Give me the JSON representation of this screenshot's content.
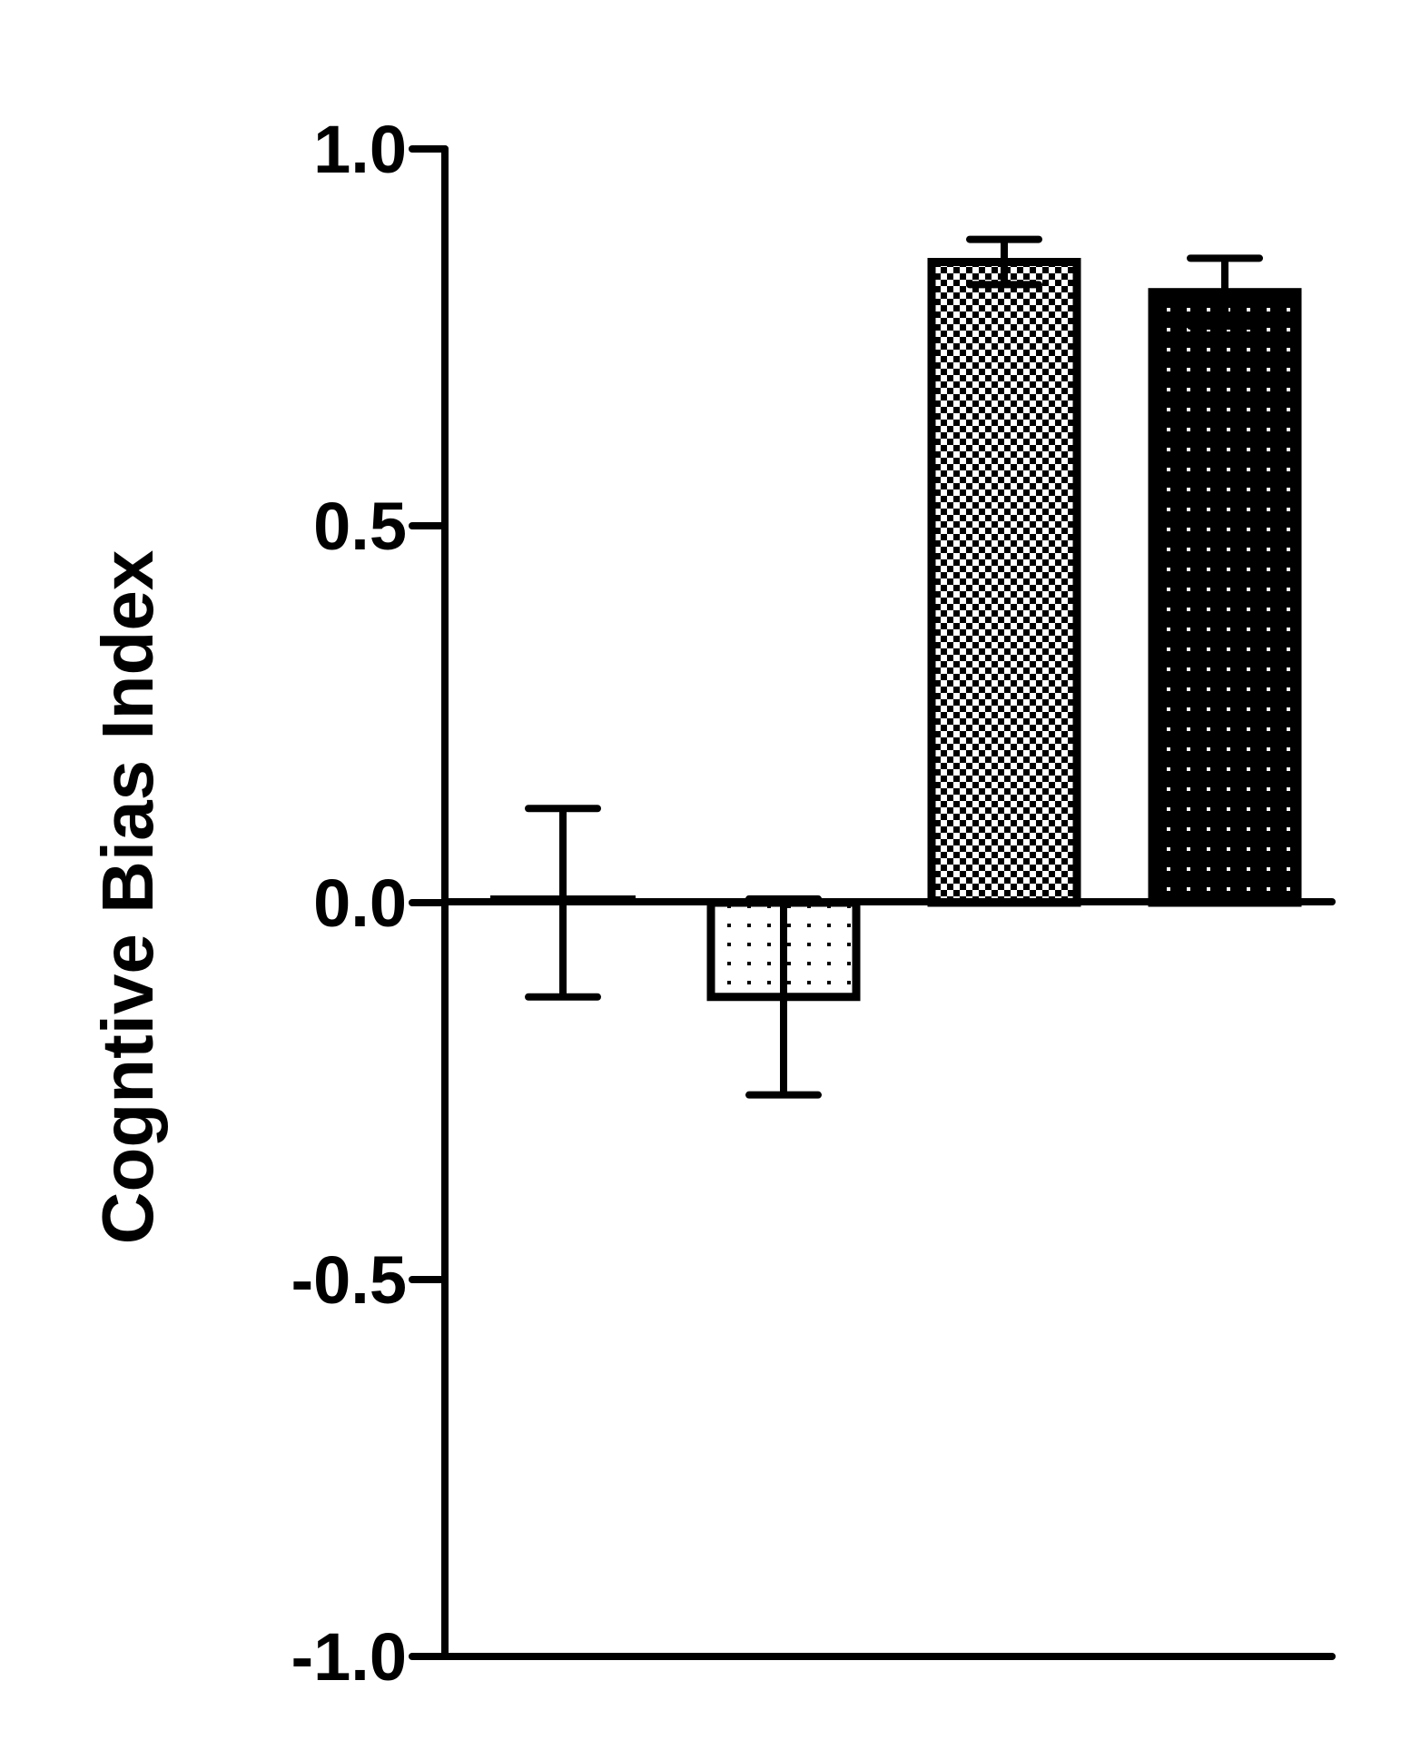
{
  "chart_data": {
    "type": "bar",
    "categories": [
      "",
      "",
      "",
      ""
    ],
    "values": [
      0.0,
      -0.125,
      0.85,
      0.81
    ],
    "errors": [
      0.125,
      0.13,
      0.03,
      0.045
    ],
    "patterns": [
      "solid",
      "sparse-dots",
      "checker",
      "white-dots-on-black"
    ],
    "title": "",
    "xlabel": "",
    "ylabel": "Cogntive Bias Index",
    "ylim": [
      -1.0,
      1.0
    ],
    "yticks": [
      1.0,
      0.5,
      0.0,
      -0.5,
      -1.0
    ],
    "ytick_labels": [
      "1.0",
      "0.5",
      "0.0",
      "-0.5",
      "-1.0"
    ],
    "grid": false,
    "legend": "none",
    "colors": {
      "ink": "#000000",
      "paper": "#ffffff"
    }
  }
}
